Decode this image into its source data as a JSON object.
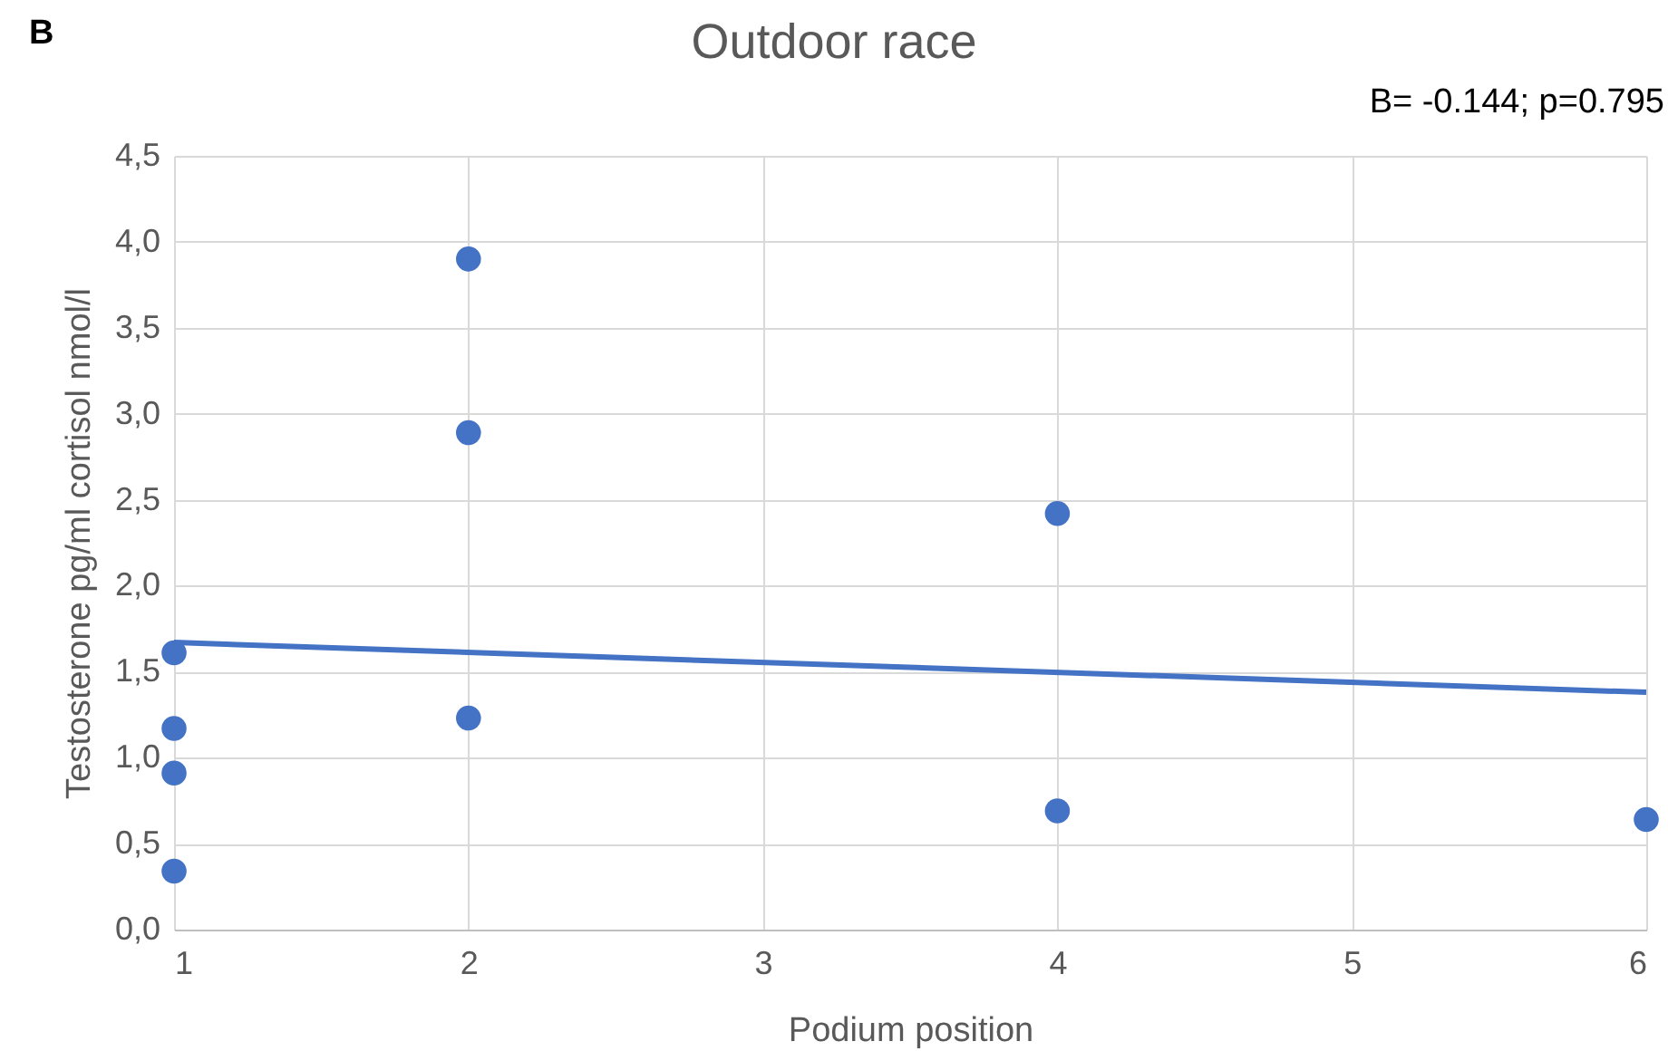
{
  "chart_data": {
    "type": "scatter",
    "title": "Outdoor race",
    "xlabel": "Podium position",
    "ylabel": "Testosterone pg/ml cortisol nmol/l",
    "annotations": [
      "B",
      "B= -0.144; p=0.795"
    ],
    "series": [
      {
        "color": "#4472c4",
        "marker": "circle",
        "x": [
          1,
          1,
          1,
          1,
          2,
          2,
          2,
          4,
          4,
          6
        ],
        "values": [
          1.61,
          1.17,
          0.91,
          0.34,
          3.9,
          2.89,
          1.23,
          2.42,
          0.69,
          0.64
        ]
      },
      {
        "type": "line",
        "color": "#4472c4",
        "x": [
          1,
          6
        ],
        "values": [
          1.67,
          1.38
        ]
      }
    ],
    "xlim": [
      1,
      6
    ],
    "xticks": [
      1,
      2,
      3,
      4,
      5,
      6
    ],
    "ylim": [
      0,
      4.5
    ],
    "yticks": [
      {
        "value": 0,
        "label": "0,0"
      },
      {
        "value": 0.5,
        "label": "0,5"
      },
      {
        "value": 1,
        "label": "1,0"
      },
      {
        "value": 1.5,
        "label": "1,5"
      },
      {
        "value": 2,
        "label": "2,0"
      },
      {
        "value": 2.5,
        "label": "2,5"
      },
      {
        "value": 3,
        "label": "3,0"
      },
      {
        "value": 3.5,
        "label": "3,5"
      },
      {
        "value": 4,
        "label": "4,0"
      },
      {
        "value": 4.5,
        "label": "4,5"
      }
    ],
    "grid": true
  }
}
